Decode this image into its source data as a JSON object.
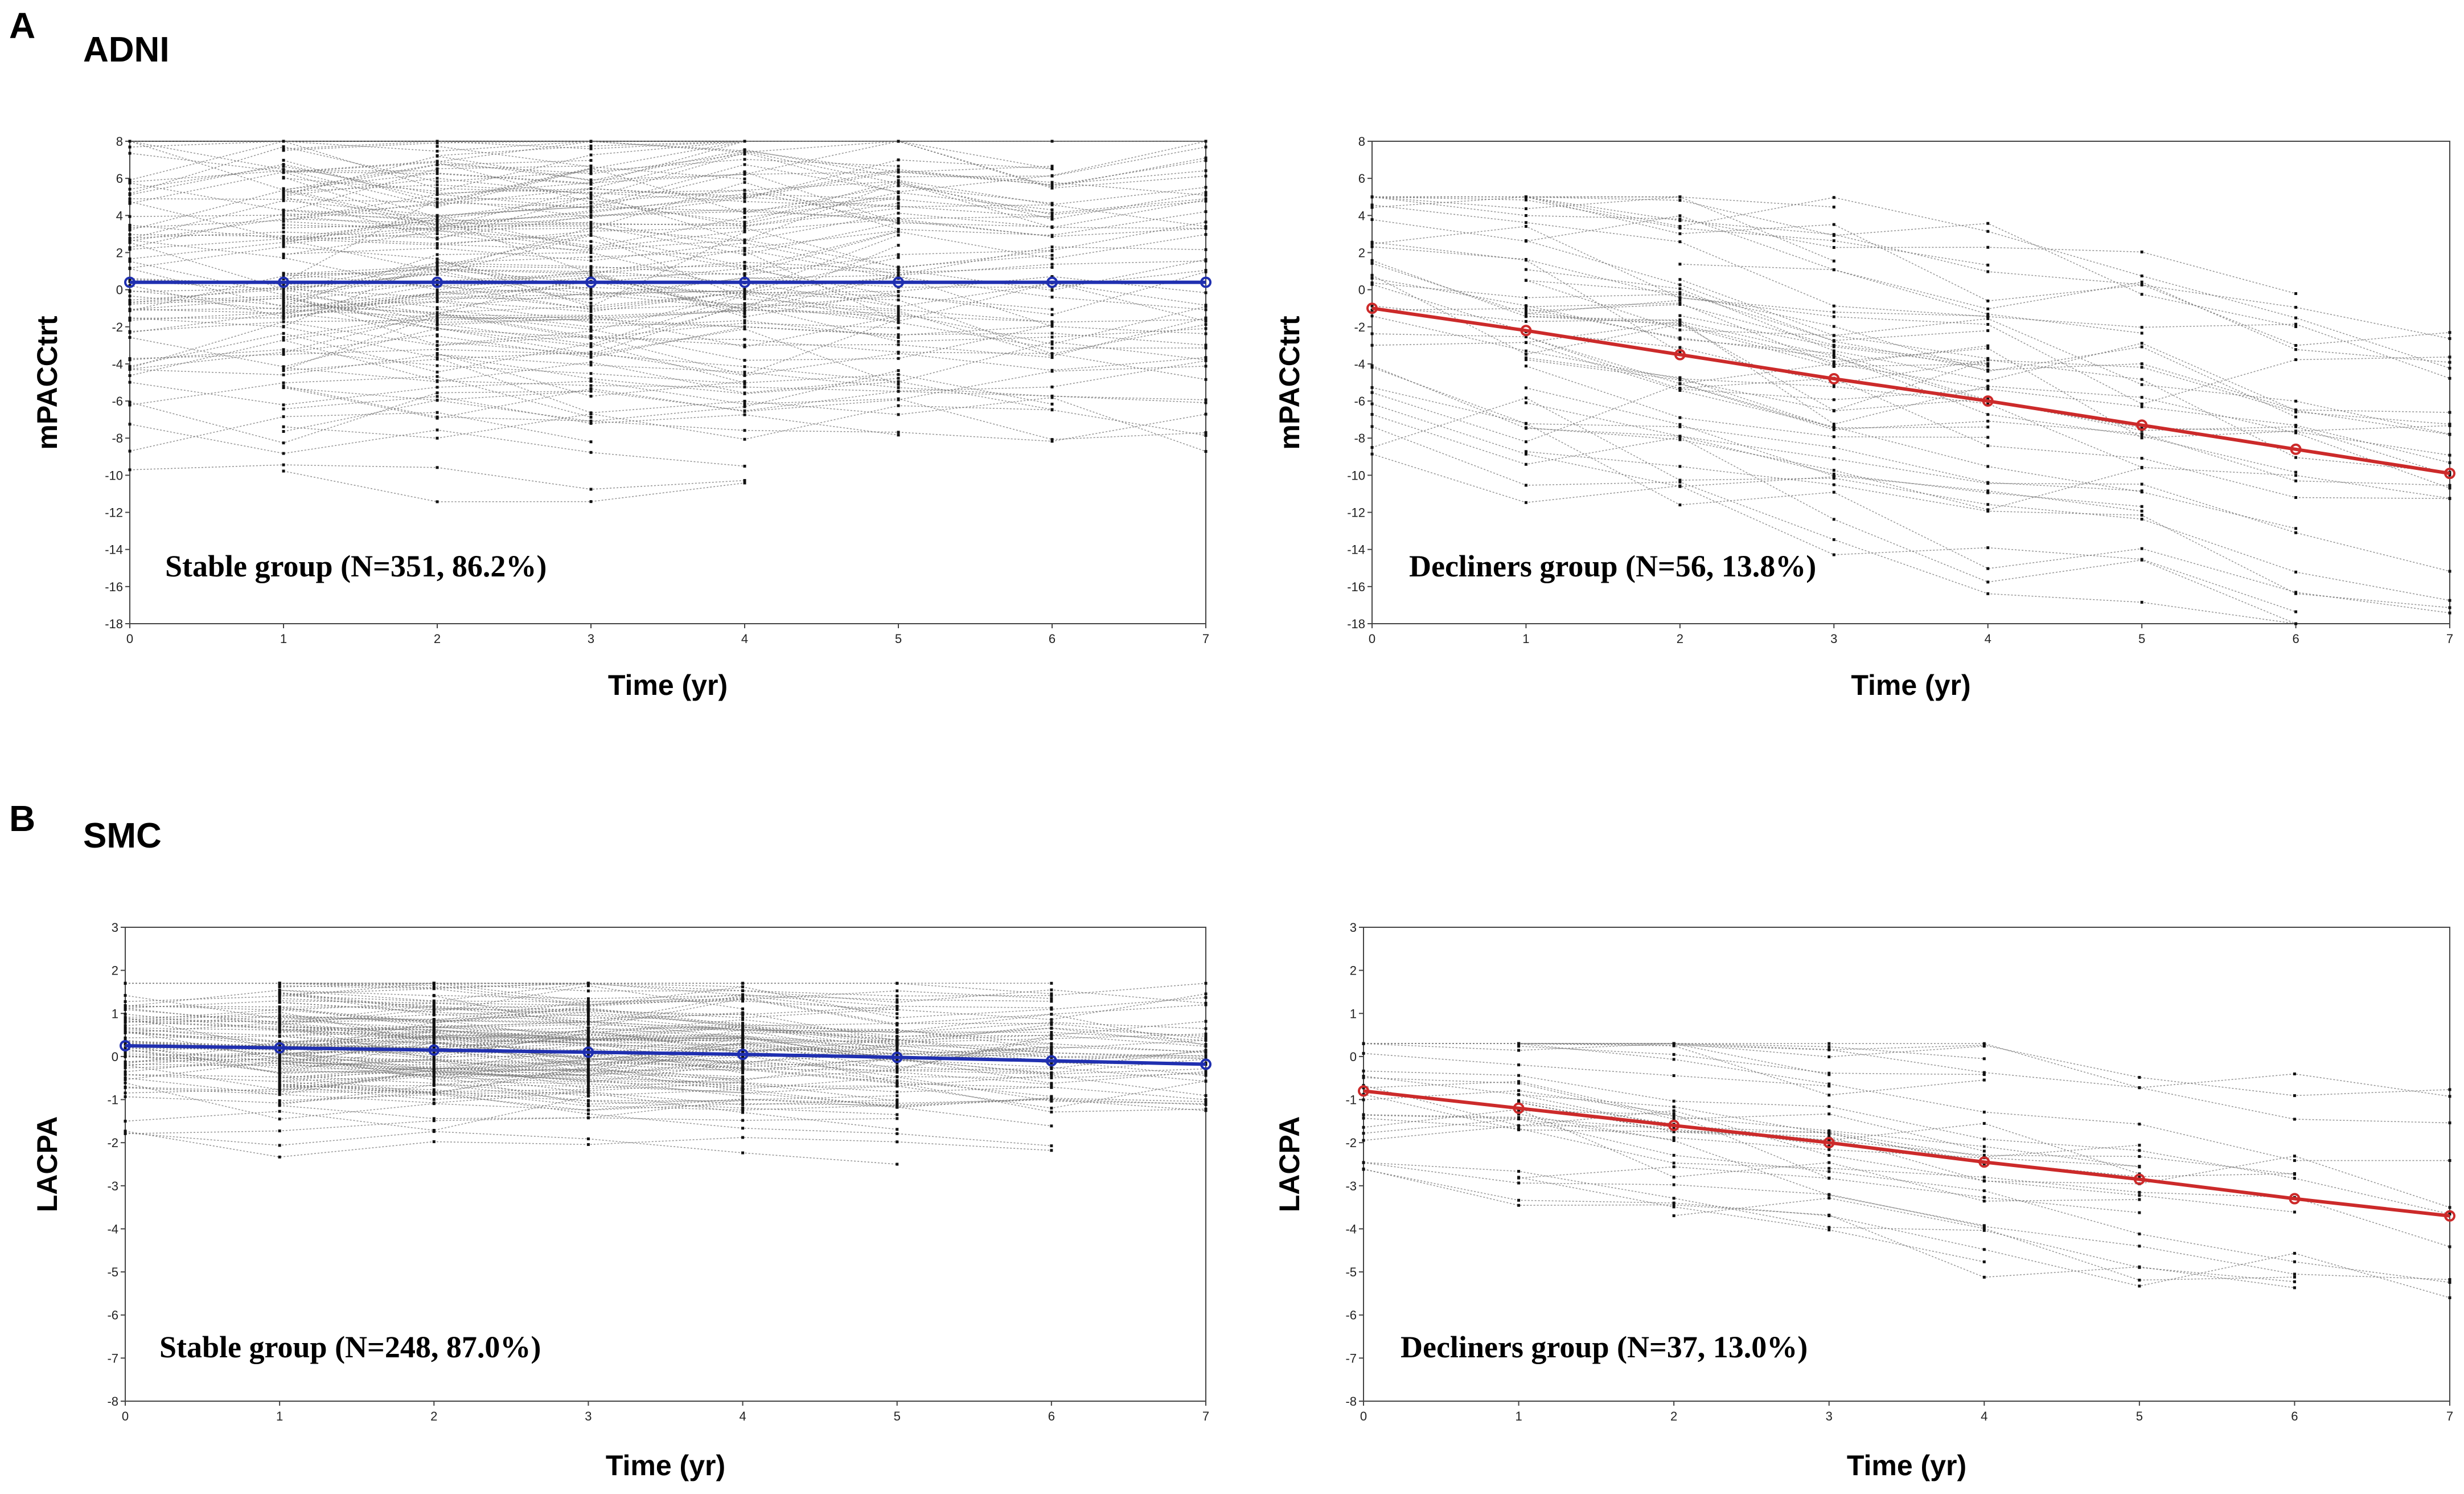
{
  "panels": [
    {
      "letter": "A",
      "cohort": "ADNI"
    },
    {
      "letter": "B",
      "cohort": "SMC"
    }
  ],
  "chart_data": [
    {
      "type": "line",
      "panel": "A",
      "cohort": "ADNI",
      "ylabel": "mPACCtrt",
      "xlabel": "Time (yr)",
      "xlim": [
        0,
        7
      ],
      "ylim": [
        -18,
        8
      ],
      "xticks": [
        0,
        1,
        2,
        3,
        4,
        5,
        6,
        7
      ],
      "yticks": [
        8,
        6,
        4,
        2,
        0,
        -2,
        -4,
        -6,
        -8,
        -10,
        -12,
        -14,
        -16,
        -18
      ],
      "annotation": "Stable group (N=351, 86.2%)",
      "mean_color": "#1f2fb0",
      "mean_trajectory": {
        "x": [
          0,
          1,
          2,
          3,
          4,
          5,
          6,
          7
        ],
        "y": [
          0.4,
          0.4,
          0.4,
          0.4,
          0.4,
          0.4,
          0.4,
          0.4
        ]
      },
      "individual_trajectories": {
        "count": 351,
        "y_range_approx": [
          -12,
          8
        ]
      }
    },
    {
      "type": "line",
      "panel": "A",
      "cohort": "ADNI",
      "ylabel": "mPACCtrt",
      "xlabel": "Time (yr)",
      "xlim": [
        0,
        7
      ],
      "ylim": [
        -18,
        8
      ],
      "xticks": [
        0,
        1,
        2,
        3,
        4,
        5,
        6,
        7
      ],
      "yticks": [
        8,
        6,
        4,
        2,
        0,
        -2,
        -4,
        -6,
        -8,
        -10,
        -12,
        -14,
        -16,
        -18
      ],
      "annotation": "Decliners group (N=56, 13.8%)",
      "mean_color": "#cc2a2a",
      "mean_trajectory": {
        "x": [
          0,
          1,
          2,
          3,
          4,
          5,
          6,
          7
        ],
        "y": [
          -1.0,
          -2.2,
          -3.5,
          -4.8,
          -6.0,
          -7.3,
          -8.6,
          -9.9
        ]
      },
      "individual_trajectories": {
        "count": 56,
        "y_range_approx": [
          -18,
          5
        ]
      }
    },
    {
      "type": "line",
      "panel": "B",
      "cohort": "SMC",
      "ylabel": "LACPA",
      "xlabel": "Time (yr)",
      "xlim": [
        0,
        7
      ],
      "ylim": [
        -8,
        3
      ],
      "xticks": [
        0,
        1,
        2,
        3,
        4,
        5,
        6,
        7
      ],
      "yticks": [
        3,
        2,
        1,
        0,
        -1,
        -2,
        -3,
        -4,
        -5,
        -6,
        -7,
        -8
      ],
      "annotation": "Stable group (N=248, 87.0%)",
      "mean_color": "#1f2fb0",
      "mean_trajectory": {
        "x": [
          0,
          1,
          2,
          3,
          4,
          5,
          6,
          7
        ],
        "y": [
          0.25,
          0.2,
          0.15,
          0.1,
          0.05,
          -0.02,
          -0.1,
          -0.18
        ]
      },
      "individual_trajectories": {
        "count": 248,
        "y_range_approx": [
          -2.5,
          1.7
        ]
      }
    },
    {
      "type": "line",
      "panel": "B",
      "cohort": "SMC",
      "ylabel": "LACPA",
      "xlabel": "Time (yr)",
      "xlim": [
        0,
        7
      ],
      "ylim": [
        -8,
        3
      ],
      "xticks": [
        0,
        1,
        2,
        3,
        4,
        5,
        6,
        7
      ],
      "yticks": [
        3,
        2,
        1,
        0,
        -1,
        -2,
        -3,
        -4,
        -5,
        -6,
        -7,
        -8
      ],
      "annotation": "Decliners group (N=37, 13.0%)",
      "mean_color": "#cc2a2a",
      "mean_trajectory": {
        "x": [
          0,
          1,
          2,
          3,
          4,
          5,
          6,
          7
        ],
        "y": [
          -0.8,
          -1.2,
          -1.6,
          -2.0,
          -2.45,
          -2.85,
          -3.3,
          -3.7
        ]
      },
      "individual_trajectories": {
        "count": 37,
        "y_range_approx": [
          -5.6,
          0.3
        ]
      }
    }
  ]
}
